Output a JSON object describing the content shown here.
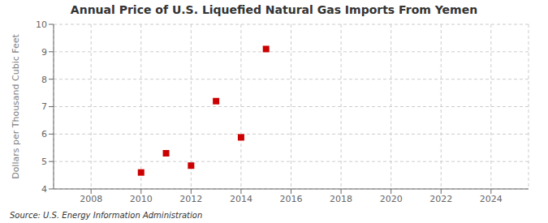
{
  "chart_data": {
    "type": "scatter",
    "title": "Annual Price of U.S. Liquefied Natural Gas Imports From Yemen",
    "ylabel": "Dollars per Thousand Cubic Feet",
    "source": "Source: U.S. Energy Information Administration",
    "x": [
      2010,
      2011,
      2012,
      2013,
      2014,
      2015
    ],
    "values": [
      4.6,
      5.3,
      4.85,
      7.2,
      5.88,
      9.1
    ],
    "color": "#CC0000",
    "marker": "square",
    "xlim": [
      2006.5,
      2025.5
    ],
    "ylim": [
      4,
      10
    ],
    "xticks": [
      2008,
      2010,
      2012,
      2014,
      2016,
      2018,
      2020,
      2022,
      2024
    ],
    "yticks": [
      4,
      5,
      6,
      7,
      8,
      9,
      10
    ],
    "grid": true
  }
}
